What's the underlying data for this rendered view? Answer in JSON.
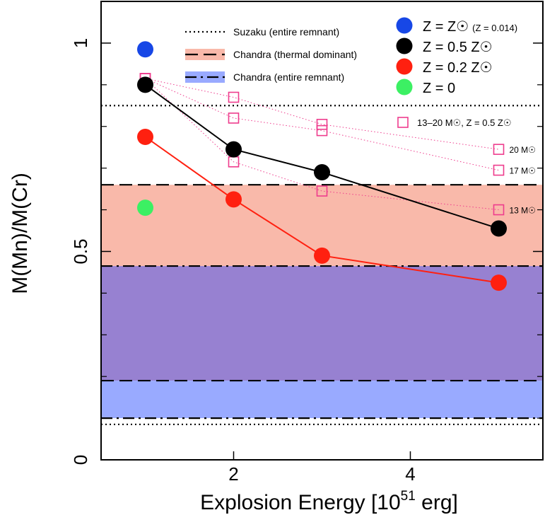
{
  "chart_data": {
    "type": "scatter",
    "xlabel": "Explosion Energy [10",
    "xlabel_sup": "51",
    "xlabel_tail": " erg]",
    "ylabel": "M(Mn)/M(Cr)",
    "xlim": [
      0.5,
      5.5
    ],
    "ylim": [
      0,
      1.1
    ],
    "x_ticks": [
      2,
      4
    ],
    "x_tick_labels": [
      "2",
      "4"
    ],
    "y_ticks": [
      0,
      0.5,
      1
    ],
    "y_tick_labels": [
      "0",
      "0.5",
      "1"
    ],
    "y_minor_ticks": [
      0.1,
      0.2,
      0.3,
      0.4,
      0.6,
      0.7,
      0.8,
      0.9
    ],
    "bands": [
      {
        "name": "Chandra (entire remnant)",
        "y0": 0.1,
        "y1": 0.465,
        "color": "#99aaff"
      },
      {
        "name": "Chandra (thermal dominant)",
        "y0": 0.19,
        "y1": 0.66,
        "color": "#f9b9aa"
      }
    ],
    "overlap_color": "#9781d1",
    "hlines": [
      {
        "name": "suzaku-upper",
        "y": 0.85,
        "style": "dotted"
      },
      {
        "name": "suzaku-lower",
        "y": 0.085,
        "style": "dotted"
      },
      {
        "name": "thermal-upper",
        "y": 0.66,
        "style": "dashed"
      },
      {
        "name": "thermal-lower",
        "y": 0.19,
        "style": "dashed"
      },
      {
        "name": "entire-upper",
        "y": 0.465,
        "style": "dashdot"
      },
      {
        "name": "entire-lower",
        "y": 0.1,
        "style": "dashdot"
      }
    ],
    "series": [
      {
        "name": "Z = Z☉ (Z = 0.014)",
        "color": "#1747e6",
        "line": false,
        "points": [
          [
            1,
            0.985
          ]
        ]
      },
      {
        "name": "Z = 0.5 Z☉",
        "color": "#000000",
        "line": true,
        "points": [
          [
            1,
            0.9
          ],
          [
            2,
            0.745
          ],
          [
            3,
            0.69
          ],
          [
            5,
            0.555
          ]
        ]
      },
      {
        "name": "Z = 0.2 Z☉",
        "color": "#ff2010",
        "line": true,
        "points": [
          [
            1,
            0.775
          ],
          [
            2,
            0.625
          ],
          [
            3,
            0.49
          ],
          [
            5,
            0.425
          ]
        ]
      },
      {
        "name": "Z = 0",
        "color": "#3cf063",
        "line": false,
        "points": [
          [
            1,
            0.605
          ]
        ]
      }
    ],
    "progenitor_series": {
      "name": "13–20 M☉, Z = 0.5 Z☉",
      "color": "#ee3c8d",
      "tracks": [
        {
          "label": "20 M☉",
          "points": [
            [
              1,
              0.915
            ],
            [
              2,
              0.87
            ],
            [
              3,
              0.805
            ],
            [
              5,
              0.745
            ]
          ]
        },
        {
          "label": "17 M☉",
          "points": [
            [
              1,
              0.915
            ],
            [
              2,
              0.82
            ],
            [
              3,
              0.79
            ],
            [
              5,
              0.695
            ]
          ]
        },
        {
          "label": "13 M☉",
          "points": [
            [
              1,
              0.915
            ],
            [
              2,
              0.715
            ],
            [
              3,
              0.645
            ],
            [
              5,
              0.6
            ]
          ]
        }
      ]
    },
    "legend_lines": [
      {
        "label": "Suzaku  (entire remnant)",
        "style": "dotted"
      },
      {
        "label": "Chandra (thermal dominant)",
        "style": "dashed",
        "color": "#f9b9aa"
      },
      {
        "label": "Chandra (entire remnant)",
        "style": "dashdot",
        "color": "#99aaff"
      }
    ],
    "legend_points": [
      {
        "label": "Z = Z☉",
        "sub": "(Z = 0.014)",
        "color": "#1747e6"
      },
      {
        "label": "Z = 0.5 Z☉",
        "sub": "",
        "color": "#000000"
      },
      {
        "label": "Z = 0.2 Z☉",
        "sub": "",
        "color": "#ff2010"
      },
      {
        "label": "Z = 0",
        "sub": "",
        "color": "#3cf063"
      }
    ],
    "legend_location": "top-right"
  }
}
